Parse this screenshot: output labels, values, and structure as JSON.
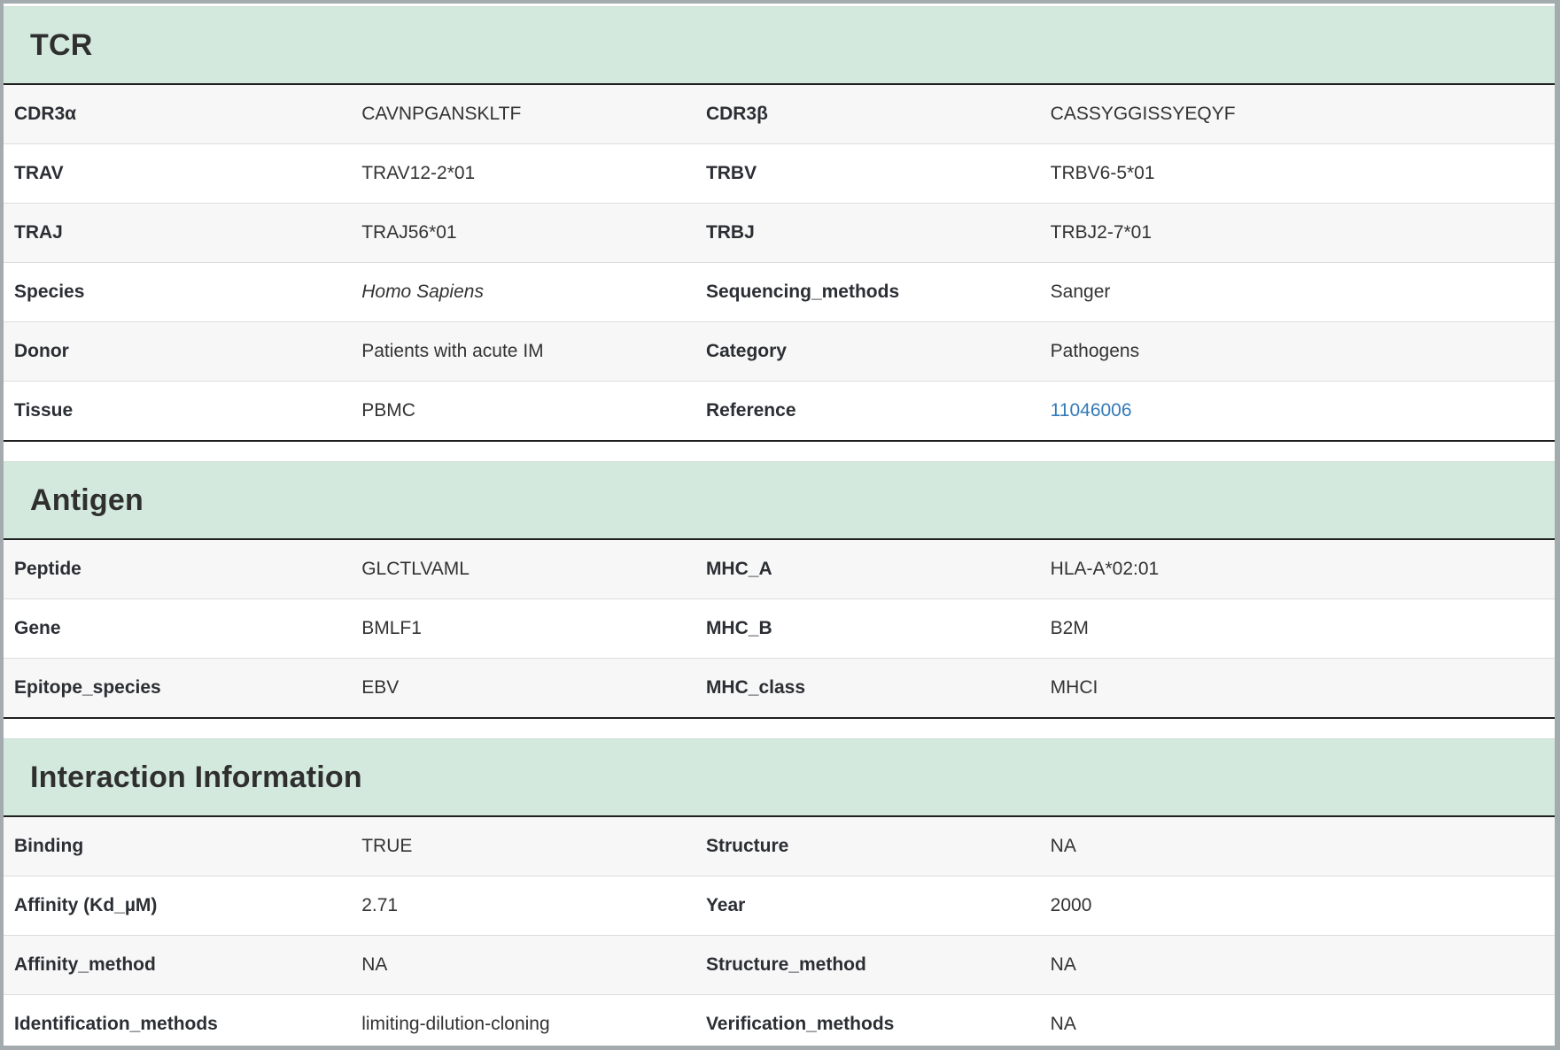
{
  "colors": {
    "section_header_bg": "#d3e9dd",
    "stripe_row_bg": "#f7f7f7",
    "header_rule": "#1f1f1f",
    "frame_gray": "#a4abaf",
    "link_blue": "#337ab7"
  },
  "sections": [
    {
      "title": "TCR",
      "rows": [
        {
          "label1": "CDR3α",
          "value1": "CAVNPGANSKLTF",
          "label2": "CDR3β",
          "value2": "CASSYGGISSYEQYF"
        },
        {
          "label1": "TRAV",
          "value1": "TRAV12-2*01",
          "label2": "TRBV",
          "value2": "TRBV6-5*01"
        },
        {
          "label1": "TRAJ",
          "value1": "TRAJ56*01",
          "label2": "TRBJ",
          "value2": "TRBJ2-7*01"
        },
        {
          "label1": "Species",
          "value1": "Homo Sapiens",
          "label2": "Sequencing_methods",
          "value2": "Sanger"
        },
        {
          "label1": "Donor",
          "value1": "Patients with acute IM",
          "label2": "Category",
          "value2": "Pathogens"
        },
        {
          "label1": "Tissue",
          "value1": "PBMC",
          "label2": "Reference",
          "value2": "11046006"
        }
      ]
    },
    {
      "title": "Antigen",
      "rows": [
        {
          "label1": "Peptide",
          "value1": "GLCTLVAML",
          "label2": "MHC_A",
          "value2": "HLA-A*02:01"
        },
        {
          "label1": "Gene",
          "value1": "BMLF1",
          "label2": "MHC_B",
          "value2": "B2M"
        },
        {
          "label1": "Epitope_species",
          "value1": "EBV",
          "label2": "MHC_class",
          "value2": "MHCI"
        }
      ]
    },
    {
      "title": "Interaction Information",
      "rows": [
        {
          "label1": "Binding",
          "value1": "TRUE",
          "label2": "Structure",
          "value2": "NA"
        },
        {
          "label1": "Affinity (Kd_µM)",
          "value1": "2.71",
          "label2": "Year",
          "value2": "2000"
        },
        {
          "label1": "Affinity_method",
          "value1": "NA",
          "label2": "Structure_method",
          "value2": "NA"
        },
        {
          "label1": "Identification_methods",
          "value1": "limiting-dilution-cloning",
          "label2": "Verification_methods",
          "value2": "NA"
        }
      ]
    }
  ]
}
